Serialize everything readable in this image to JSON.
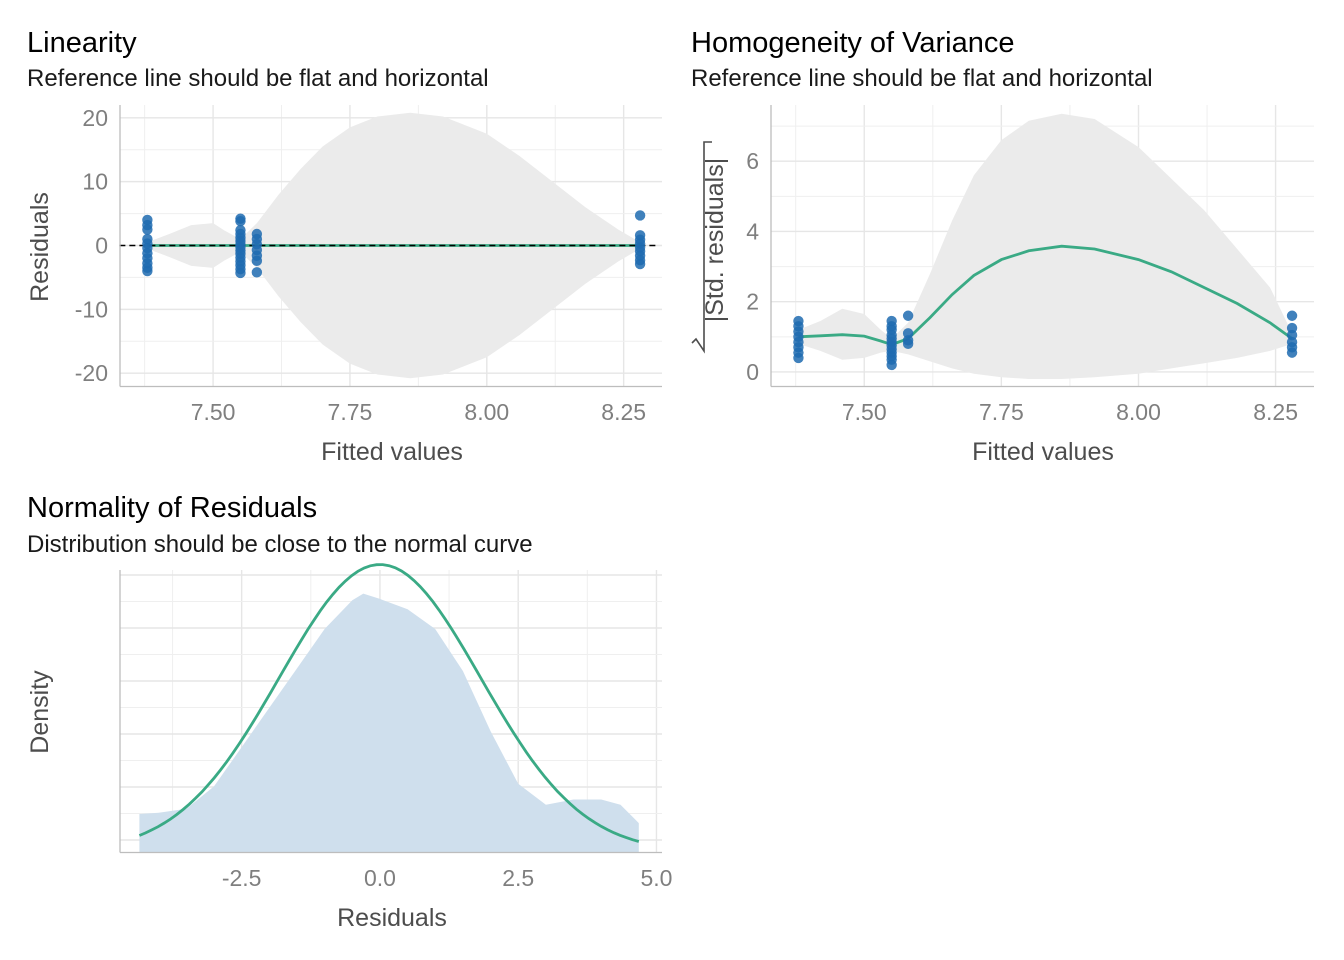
{
  "chart_data": [
    {
      "id": "linearity",
      "type": "scatter",
      "title": "Linearity",
      "subtitle": "Reference line should be flat and horizontal",
      "xlabel": "Fitted values",
      "ylabel": "Residuals",
      "xlim": [
        7.33,
        8.32
      ],
      "ylim": [
        -22,
        22
      ],
      "xticks": [
        7.5,
        7.75,
        8.0,
        8.25
      ],
      "xtick_labels": [
        "7.50",
        "7.75",
        "8.00",
        "8.25"
      ],
      "yticks": [
        -20,
        -10,
        0,
        10,
        20
      ],
      "ytick_labels": [
        "-20",
        "-10",
        "0",
        "10",
        "20"
      ],
      "grid": true,
      "reference_line": 0,
      "points": [
        [
          7.38,
          4.0
        ],
        [
          7.38,
          3.2
        ],
        [
          7.38,
          2.5
        ],
        [
          7.38,
          1.0
        ],
        [
          7.38,
          0.3
        ],
        [
          7.38,
          -0.4
        ],
        [
          7.38,
          -1.2
        ],
        [
          7.38,
          -2.0
        ],
        [
          7.38,
          -2.8
        ],
        [
          7.38,
          -3.5
        ],
        [
          7.38,
          -4.0
        ],
        [
          7.55,
          4.2
        ],
        [
          7.55,
          3.8
        ],
        [
          7.55,
          2.4
        ],
        [
          7.55,
          1.8
        ],
        [
          7.55,
          1.2
        ],
        [
          7.55,
          0.7
        ],
        [
          7.55,
          0.2
        ],
        [
          7.55,
          -0.3
        ],
        [
          7.55,
          -0.8
        ],
        [
          7.55,
          -1.3
        ],
        [
          7.55,
          -1.9
        ],
        [
          7.55,
          -2.5
        ],
        [
          7.55,
          -3.1
        ],
        [
          7.55,
          -3.7
        ],
        [
          7.55,
          -4.3
        ],
        [
          7.58,
          1.8
        ],
        [
          7.58,
          1.0
        ],
        [
          7.58,
          0.2
        ],
        [
          7.58,
          -0.7
        ],
        [
          7.58,
          -1.6
        ],
        [
          7.58,
          -2.4
        ],
        [
          7.58,
          -4.2
        ],
        [
          8.28,
          4.7
        ],
        [
          8.28,
          1.6
        ],
        [
          8.28,
          0.9
        ],
        [
          8.28,
          0.3
        ],
        [
          8.28,
          -0.3
        ],
        [
          8.28,
          -0.9
        ],
        [
          8.28,
          -1.6
        ],
        [
          8.28,
          -2.3
        ],
        [
          8.28,
          -2.9
        ]
      ],
      "smooth_x": [
        7.38,
        7.42,
        7.46,
        7.5,
        7.52,
        7.55,
        7.58,
        7.62,
        7.66,
        7.7,
        7.75,
        7.8,
        7.86,
        7.92,
        8.0,
        8.06,
        8.12,
        8.18,
        8.24,
        8.28
      ],
      "smooth_y": [
        0,
        0,
        0,
        0,
        0,
        0,
        0,
        0,
        0,
        0,
        0,
        0,
        0,
        0,
        0,
        0,
        0,
        0,
        0,
        0
      ],
      "band_upper": [
        0.5,
        1.8,
        3.2,
        3.5,
        2.4,
        1.0,
        3.5,
        8.0,
        12.0,
        15.5,
        18.5,
        20.2,
        20.8,
        20.2,
        17.5,
        14.0,
        10.0,
        6.0,
        2.5,
        0.5
      ],
      "band_lower": [
        -0.5,
        -1.8,
        -3.2,
        -3.5,
        -2.4,
        -1.0,
        -3.5,
        -8.0,
        -12.0,
        -15.5,
        -18.5,
        -20.2,
        -20.8,
        -20.2,
        -17.5,
        -14.0,
        -10.0,
        -6.0,
        -2.5,
        -0.5
      ]
    },
    {
      "id": "homogeneity",
      "type": "scatter",
      "title": "Homogeneity of Variance",
      "subtitle": "Reference line should be flat and horizontal",
      "xlabel": "Fitted values",
      "ylabel": "|Std. residuals|",
      "xlim": [
        7.33,
        8.32
      ],
      "ylim": [
        -0.4,
        7.6
      ],
      "xticks": [
        7.5,
        7.75,
        8.0,
        8.25
      ],
      "xtick_labels": [
        "7.50",
        "7.75",
        "8.00",
        "8.25"
      ],
      "yticks": [
        0,
        2,
        4,
        6
      ],
      "ytick_labels": [
        "0",
        "2",
        "4",
        "6"
      ],
      "grid": true,
      "points": [
        [
          7.38,
          1.45
        ],
        [
          7.38,
          1.3
        ],
        [
          7.38,
          1.15
        ],
        [
          7.38,
          1.0
        ],
        [
          7.38,
          0.85
        ],
        [
          7.38,
          0.7
        ],
        [
          7.38,
          0.55
        ],
        [
          7.38,
          0.4
        ],
        [
          7.55,
          1.45
        ],
        [
          7.55,
          1.3
        ],
        [
          7.55,
          1.2
        ],
        [
          7.55,
          1.05
        ],
        [
          7.55,
          0.95
        ],
        [
          7.55,
          0.85
        ],
        [
          7.55,
          0.75
        ],
        [
          7.55,
          0.65
        ],
        [
          7.55,
          0.55
        ],
        [
          7.55,
          0.45
        ],
        [
          7.55,
          0.35
        ],
        [
          7.55,
          0.2
        ],
        [
          7.58,
          1.6
        ],
        [
          7.58,
          1.1
        ],
        [
          7.58,
          0.9
        ],
        [
          7.58,
          0.8
        ],
        [
          8.28,
          1.6
        ],
        [
          8.28,
          1.25
        ],
        [
          8.28,
          1.05
        ],
        [
          8.28,
          0.85
        ],
        [
          8.28,
          0.7
        ],
        [
          8.28,
          0.55
        ]
      ],
      "smooth_x": [
        7.38,
        7.42,
        7.46,
        7.5,
        7.53,
        7.55,
        7.58,
        7.62,
        7.66,
        7.7,
        7.75,
        7.8,
        7.86,
        7.92,
        8.0,
        8.06,
        8.12,
        8.18,
        8.24,
        8.28
      ],
      "smooth_y": [
        1.0,
        1.03,
        1.06,
        1.02,
        0.88,
        0.78,
        0.95,
        1.55,
        2.2,
        2.75,
        3.2,
        3.45,
        3.58,
        3.5,
        3.2,
        2.85,
        2.4,
        1.95,
        1.4,
        0.95
      ],
      "band_upper": [
        1.2,
        1.45,
        1.8,
        1.65,
        1.2,
        0.95,
        1.4,
        2.8,
        4.3,
        5.6,
        6.6,
        7.15,
        7.35,
        7.2,
        6.4,
        5.5,
        4.6,
        3.5,
        2.4,
        1.1
      ],
      "band_lower": [
        0.8,
        0.6,
        0.35,
        0.4,
        0.55,
        0.6,
        0.5,
        0.3,
        0.1,
        -0.05,
        -0.15,
        -0.2,
        -0.2,
        -0.15,
        -0.05,
        0.1,
        0.25,
        0.4,
        0.6,
        0.8
      ]
    },
    {
      "id": "normality",
      "type": "area",
      "title": "Normality of Residuals",
      "subtitle": "Distribution should be close to the normal curve",
      "xlabel": "Residuals",
      "ylabel": "Density",
      "xlim": [
        -4.7,
        5.1
      ],
      "ylim": [
        0,
        0.215
      ],
      "xticks": [
        -2.5,
        0.0,
        2.5,
        5.0
      ],
      "xtick_labels": [
        "-2.5",
        "0.0",
        "2.5",
        "5.0"
      ],
      "yticks": [],
      "grid": true,
      "density_x": [
        -4.35,
        -4.0,
        -3.5,
        -3.0,
        -2.5,
        -2.0,
        -1.5,
        -1.0,
        -0.5,
        -0.3,
        0.0,
        0.5,
        1.0,
        1.5,
        2.0,
        2.5,
        3.0,
        3.5,
        4.0,
        4.35,
        4.68
      ],
      "density_y": [
        0.029,
        0.03,
        0.033,
        0.05,
        0.08,
        0.11,
        0.14,
        0.17,
        0.192,
        0.197,
        0.193,
        0.185,
        0.17,
        0.138,
        0.092,
        0.052,
        0.036,
        0.04,
        0.04,
        0.036,
        0.022
      ],
      "normal_mean": 0.0,
      "normal_sd": 1.82
    }
  ]
}
